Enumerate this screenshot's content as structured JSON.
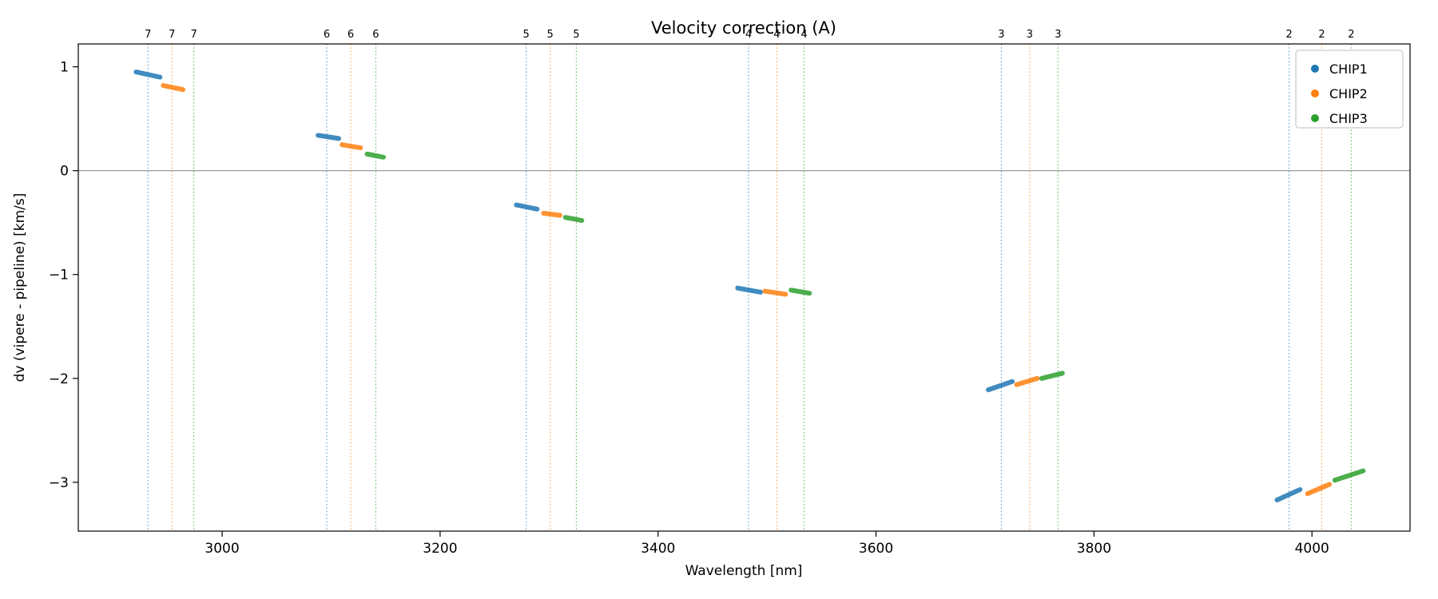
{
  "figure": {
    "title": "Velocity correction (A)"
  },
  "axes": {
    "xlabel": "Wavelength [nm]",
    "ylabel": "dv (vipere - pipeline) [km/s]",
    "xlim": [
      2868,
      4090
    ],
    "ylim": [
      -3.47,
      1.22
    ],
    "xticks": [
      3000,
      3200,
      3400,
      3600,
      3800,
      4000
    ],
    "yticks": [
      1,
      0,
      -1,
      -2,
      -3
    ],
    "zero_line": 0
  },
  "legend": {
    "items": [
      {
        "label": "CHIP1",
        "color": "#1f77b4"
      },
      {
        "label": "CHIP2",
        "color": "#ff7f0e"
      },
      {
        "label": "CHIP3",
        "color": "#2ca02c"
      }
    ]
  },
  "chart_data": {
    "type": "line",
    "title": "Velocity correction (A)",
    "xlabel": "Wavelength [nm]",
    "ylabel": "dv (vipere - pipeline) [km/s]",
    "xlim": [
      2868,
      4090
    ],
    "ylim": [
      -3.47,
      1.22
    ],
    "xticks": [
      3000,
      3200,
      3400,
      3600,
      3800,
      4000
    ],
    "yticks": [
      1,
      0,
      -1,
      -2,
      -3
    ],
    "grid": false,
    "legend_position": "upper right",
    "series": [
      {
        "name": "CHIP1",
        "color": "#1f77b4",
        "orders": [
          {
            "order": 7,
            "vline_x": 2932,
            "x": [
              2921,
              2943
            ],
            "y": [
              0.95,
              0.9
            ]
          },
          {
            "order": 6,
            "vline_x": 3096,
            "x": [
              3088,
              3107
            ],
            "y": [
              0.34,
              0.31
            ]
          },
          {
            "order": 5,
            "vline_x": 3279,
            "x": [
              3270,
              3289
            ],
            "y": [
              -0.33,
              -0.37
            ]
          },
          {
            "order": 4,
            "vline_x": 3483,
            "x": [
              3473,
              3494
            ],
            "y": [
              -1.13,
              -1.17
            ]
          },
          {
            "order": 3,
            "vline_x": 3715,
            "x": [
              3703,
              3725
            ],
            "y": [
              -2.11,
              -2.03
            ]
          },
          {
            "order": 2,
            "vline_x": 3979,
            "x": [
              3968,
              3989
            ],
            "y": [
              -3.17,
              -3.07
            ]
          }
        ]
      },
      {
        "name": "CHIP2",
        "color": "#ff7f0e",
        "orders": [
          {
            "order": 7,
            "vline_x": 2954,
            "x": [
              2946,
              2964
            ],
            "y": [
              0.82,
              0.78
            ]
          },
          {
            "order": 6,
            "vline_x": 3118,
            "x": [
              3110,
              3127
            ],
            "y": [
              0.25,
              0.22
            ]
          },
          {
            "order": 5,
            "vline_x": 3301,
            "x": [
              3295,
              3310
            ],
            "y": [
              -0.41,
              -0.43
            ]
          },
          {
            "order": 4,
            "vline_x": 3509,
            "x": [
              3498,
              3517
            ],
            "y": [
              -1.16,
              -1.19
            ]
          },
          {
            "order": 3,
            "vline_x": 3741,
            "x": [
              3729,
              3748
            ],
            "y": [
              -2.06,
              -2.0
            ]
          },
          {
            "order": 2,
            "vline_x": 4009,
            "x": [
              3996,
              4016
            ],
            "y": [
              -3.11,
              -3.02
            ]
          }
        ]
      },
      {
        "name": "CHIP3",
        "color": "#2ca02c",
        "orders": [
          {
            "order": 7,
            "vline_x": 2974,
            "x": null,
            "y": null
          },
          {
            "order": 6,
            "vline_x": 3141,
            "x": [
              3133,
              3148
            ],
            "y": [
              0.16,
              0.13
            ]
          },
          {
            "order": 5,
            "vline_x": 3325,
            "x": [
              3315,
              3330
            ],
            "y": [
              -0.45,
              -0.48
            ]
          },
          {
            "order": 4,
            "vline_x": 3534,
            "x": [
              3522,
              3539
            ],
            "y": [
              -1.15,
              -1.18
            ]
          },
          {
            "order": 3,
            "vline_x": 3767,
            "x": [
              3752,
              3771
            ],
            "y": [
              -2.0,
              -1.95
            ]
          },
          {
            "order": 2,
            "vline_x": 4036,
            "x": [
              4021,
              4047
            ],
            "y": [
              -2.98,
              -2.89
            ]
          }
        ]
      }
    ]
  }
}
